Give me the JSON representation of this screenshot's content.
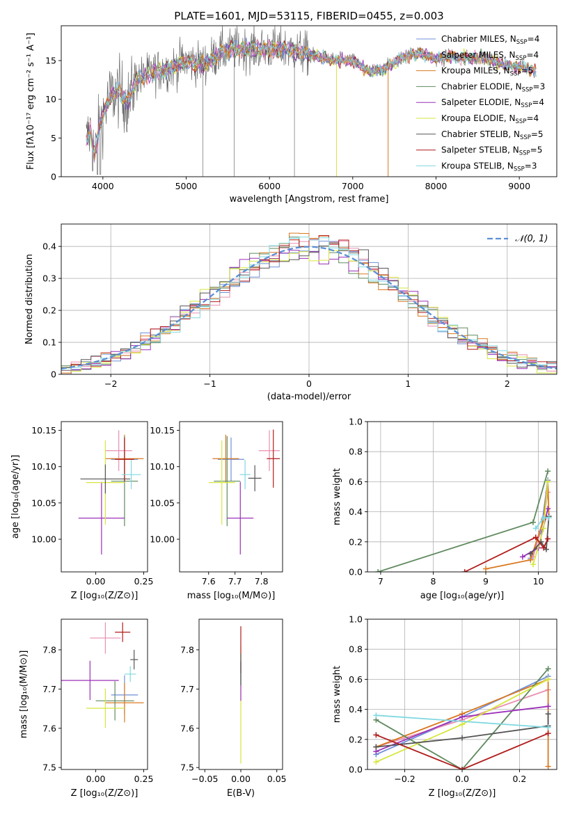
{
  "colors": {
    "chabrier_miles": "#6f8fd8",
    "salpeter_miles": "#e98db0",
    "kroupa_miles": "#d9781f",
    "chabrier_elodie": "#5f8a5f",
    "salpeter_elodie": "#9a2fb8",
    "kroupa_elodie": "#d6e63c",
    "chabrier_stelib": "#555555",
    "salpeter_stelib": "#b01c1c",
    "kroupa_stelib": "#7fd8e0",
    "normal_curve": "#5b8fd4"
  },
  "models": [
    {
      "key": "chabrier_miles",
      "label_pre": "Chabrier MILES, N",
      "sub": "SSP",
      "label_post": "=4"
    },
    {
      "key": "salpeter_miles",
      "label_pre": "Salpeter MILES, N",
      "sub": "SSP",
      "label_post": "=4"
    },
    {
      "key": "kroupa_miles",
      "label_pre": "Kroupa MILES, N",
      "sub": "SSP",
      "label_post": "=5"
    },
    {
      "key": "chabrier_elodie",
      "label_pre": "Chabrier ELODIE, N",
      "sub": "SSP",
      "label_post": "=3"
    },
    {
      "key": "salpeter_elodie",
      "label_pre": "Salpeter ELODIE, N",
      "sub": "SSP",
      "label_post": "=4"
    },
    {
      "key": "kroupa_elodie",
      "label_pre": "Kroupa ELODIE, N",
      "sub": "SSP",
      "label_post": "=4"
    },
    {
      "key": "chabrier_stelib",
      "label_pre": "Chabrier STELIB, N",
      "sub": "SSP",
      "label_post": "=5"
    },
    {
      "key": "salpeter_stelib",
      "label_pre": "Salpeter STELIB, N",
      "sub": "SSP",
      "label_post": "=5"
    },
    {
      "key": "kroupa_stelib",
      "label_pre": "Kroupa STELIB, N",
      "sub": "SSP",
      "label_post": "=3"
    }
  ],
  "chart_data": [
    {
      "id": "spectrum",
      "type": "line",
      "title": "PLATE=1601, MJD=53115, FIBERID=0455, z=0.003",
      "xlabel": "wavelength [Angstrom, rest frame]",
      "ylabel": "Flux [fλ10⁻¹⁷ erg cm⁻² s⁻¹ A⁻¹]",
      "xlim": [
        3500,
        9450
      ],
      "ylim": [
        0,
        19.5
      ],
      "xticks": [
        4000,
        5000,
        6000,
        7000,
        8000,
        9000
      ],
      "yticks": [
        0,
        5,
        10,
        15
      ],
      "legend": "upper-right",
      "continuum": [
        [
          3800,
          4.5
        ],
        [
          3850,
          6
        ],
        [
          3900,
          2.5
        ],
        [
          3950,
          6
        ],
        [
          4000,
          8
        ],
        [
          4100,
          10.5
        ],
        [
          4200,
          11
        ],
        [
          4300,
          9.5
        ],
        [
          4400,
          12.5
        ],
        [
          4600,
          13.5
        ],
        [
          4800,
          14
        ],
        [
          5000,
          15
        ],
        [
          5200,
          14.5
        ],
        [
          5400,
          16
        ],
        [
          5600,
          16.5
        ],
        [
          5800,
          16.5
        ],
        [
          6000,
          16.5
        ],
        [
          6200,
          16.5
        ],
        [
          6400,
          16
        ],
        [
          6600,
          15.5
        ],
        [
          6800,
          15
        ],
        [
          7000,
          15
        ],
        [
          7200,
          13.5
        ],
        [
          7400,
          14
        ],
        [
          7600,
          15.5
        ],
        [
          7800,
          16
        ],
        [
          8000,
          15.2
        ],
        [
          8200,
          15.5
        ],
        [
          8400,
          15.3
        ],
        [
          8600,
          15.4
        ],
        [
          8800,
          14.5
        ],
        [
          9000,
          14.2
        ],
        [
          9200,
          13.7
        ]
      ]
    },
    {
      "id": "residuals",
      "type": "histogram",
      "xlabel": "(data-model)/error",
      "ylabel": "Normed distribution",
      "xlim": [
        -2.5,
        2.5
      ],
      "ylim": [
        0,
        0.47
      ],
      "xticks": [
        -2,
        -1,
        0,
        1,
        2
      ],
      "yticks": [
        0.0,
        0.1,
        0.2,
        0.3,
        0.4
      ],
      "grid": true,
      "legend": "upper-right",
      "curve_label": "𝒩(0, 1)",
      "bin_width": 0.1
    },
    {
      "id": "age_vs_Z",
      "type": "errorbar",
      "xlabel": "Z [log₁₀(Z/Z⊙)]",
      "ylabel": "age  [log₁₀(age/yr)]",
      "xlim": [
        -0.18,
        0.27
      ],
      "ylim": [
        9.955,
        10.162
      ],
      "xticks": [
        0.0,
        0.25
      ],
      "xticklabels": [
        "0.00",
        "0.25"
      ],
      "yticks": [
        10.0,
        10.05,
        10.1,
        10.15
      ],
      "yticklabels": [
        "10.00",
        "10.05",
        "10.10",
        "10.15"
      ],
      "points": [
        {
          "m": "chabrier_miles",
          "x": 0.15,
          "xe": 0.07,
          "y": 10.11,
          "ye": 0.03
        },
        {
          "m": "salpeter_miles",
          "x": 0.12,
          "xe": 0.07,
          "y": 10.122,
          "ye": 0.028
        },
        {
          "m": "kroupa_miles",
          "x": 0.15,
          "xe": 0.1,
          "y": 10.111,
          "ye": 0.033
        },
        {
          "m": "chabrier_elodie",
          "x": 0.15,
          "xe": 0.07,
          "y": 10.08,
          "ye": 0.062
        },
        {
          "m": "salpeter_elodie",
          "x": 0.03,
          "xe": 0.12,
          "y": 10.029,
          "ye": 0.05
        },
        {
          "m": "kroupa_elodie",
          "x": 0.05,
          "xe": 0.1,
          "y": 10.078,
          "ye": 0.058
        },
        {
          "m": "chabrier_stelib",
          "x": 0.05,
          "xe": 0.13,
          "y": 10.083,
          "ye": 0.02
        },
        {
          "m": "salpeter_stelib",
          "x": 0.15,
          "xe": 0.05,
          "y": 10.11,
          "ye": 0.03
        },
        {
          "m": "kroupa_stelib",
          "x": 0.185,
          "xe": 0.05,
          "y": 10.089,
          "ye": 0.02
        }
      ]
    },
    {
      "id": "age_vs_mass",
      "type": "errorbar",
      "xlabel": "mass [log₁₀(M/M⊙)]",
      "ylabel": "",
      "xlim": [
        7.49,
        7.88
      ],
      "ylim": [
        9.955,
        10.162
      ],
      "xticks": [
        7.6,
        7.7,
        7.8
      ],
      "xticklabels": [
        "7.6",
        "7.7",
        "7.8"
      ],
      "yticks": [
        10.0,
        10.05,
        10.1,
        10.15
      ],
      "yticklabels": [
        "10.00",
        "10.05",
        "10.10",
        "10.15"
      ],
      "points": [
        {
          "m": "chabrier_miles",
          "x": 7.685,
          "xe": 0.05,
          "y": 10.11,
          "ye": 0.03
        },
        {
          "m": "salpeter_miles",
          "x": 7.83,
          "xe": 0.04,
          "y": 10.122,
          "ye": 0.028
        },
        {
          "m": "kroupa_miles",
          "x": 7.665,
          "xe": 0.05,
          "y": 10.111,
          "ye": 0.033
        },
        {
          "m": "chabrier_elodie",
          "x": 7.67,
          "xe": 0.05,
          "y": 10.08,
          "ye": 0.062
        },
        {
          "m": "salpeter_elodie",
          "x": 7.72,
          "xe": 0.05,
          "y": 10.029,
          "ye": 0.05
        },
        {
          "m": "kroupa_elodie",
          "x": 7.65,
          "xe": 0.05,
          "y": 10.078,
          "ye": 0.058
        },
        {
          "m": "chabrier_stelib",
          "x": 7.775,
          "xe": 0.025,
          "y": 10.084,
          "ye": 0.018
        },
        {
          "m": "salpeter_stelib",
          "x": 7.845,
          "xe": 0.025,
          "y": 10.111,
          "ye": 0.04
        },
        {
          "m": "kroupa_stelib",
          "x": 7.738,
          "xe": 0.02,
          "y": 10.089,
          "ye": 0.02
        }
      ]
    },
    {
      "id": "weight_vs_age",
      "type": "line",
      "xlabel": "age  [log₁₀(age/yr)]",
      "ylabel": "mass weight",
      "xlim": [
        6.75,
        10.35
      ],
      "ylim": [
        0,
        1.0
      ],
      "xticks": [
        7,
        8,
        9,
        10
      ],
      "yticks": [
        0.0,
        0.2,
        0.4,
        0.6,
        0.8,
        1.0
      ],
      "yticklabels": [
        "0.0",
        "0.2",
        "0.4",
        "0.6",
        "0.8",
        "1.0"
      ],
      "grid": true,
      "series": [
        {
          "m": "chabrier_miles",
          "points": [
            [
              9.85,
              0.09
            ],
            [
              10.05,
              0.27
            ],
            [
              10.18,
              0.61
            ]
          ]
        },
        {
          "m": "salpeter_miles",
          "points": [
            [
              9.9,
              0.1
            ],
            [
              10.1,
              0.35
            ],
            [
              10.18,
              0.53
            ]
          ]
        },
        {
          "m": "kroupa_miles",
          "points": [
            [
              9.0,
              0.02
            ],
            [
              9.85,
              0.08
            ],
            [
              10.1,
              0.35
            ],
            [
              10.18,
              0.6
            ],
            [
              10.2,
              0.36
            ]
          ]
        },
        {
          "m": "chabrier_elodie",
          "points": [
            [
              6.95,
              0.0
            ],
            [
              9.9,
              0.33
            ],
            [
              10.18,
              0.67
            ]
          ]
        },
        {
          "m": "salpeter_elodie",
          "points": [
            [
              9.7,
              0.1
            ],
            [
              10.0,
              0.16
            ],
            [
              10.18,
              0.42
            ]
          ]
        },
        {
          "m": "kroupa_elodie",
          "points": [
            [
              9.9,
              0.05
            ],
            [
              10.1,
              0.29
            ],
            [
              10.18,
              0.6
            ]
          ]
        },
        {
          "m": "chabrier_stelib",
          "points": [
            [
              9.85,
              0.12
            ],
            [
              10.05,
              0.2
            ],
            [
              10.15,
              0.15
            ],
            [
              10.2,
              0.37
            ]
          ]
        },
        {
          "m": "salpeter_stelib",
          "points": [
            [
              8.6,
              0.0
            ],
            [
              9.95,
              0.23
            ],
            [
              10.1,
              0.16
            ],
            [
              10.18,
              0.22
            ]
          ]
        },
        {
          "m": "kroupa_stelib",
          "points": [
            [
              9.95,
              0.29
            ],
            [
              10.1,
              0.36
            ],
            [
              10.2,
              0.36
            ]
          ]
        }
      ]
    },
    {
      "id": "mass_vs_Z",
      "type": "errorbar",
      "xlabel": "Z [log₁₀(Z/Z⊙)]",
      "ylabel": "mass [log₁₀(M/M⊙)]",
      "xlim": [
        -0.18,
        0.27
      ],
      "ylim": [
        7.495,
        7.878
      ],
      "xticks": [
        0.0,
        0.25
      ],
      "xticklabels": [
        "0.00",
        "0.25"
      ],
      "yticks": [
        7.5,
        7.6,
        7.7,
        7.8
      ],
      "yticklabels": [
        "7.5",
        "7.6",
        "7.7",
        "7.8"
      ],
      "points": [
        {
          "m": "chabrier_miles",
          "x": 0.15,
          "xe": 0.07,
          "y": 7.685,
          "ye": 0.05
        },
        {
          "m": "salpeter_miles",
          "x": 0.05,
          "xe": 0.08,
          "y": 7.83,
          "ye": 0.04
        },
        {
          "m": "kroupa_miles",
          "x": 0.15,
          "xe": 0.1,
          "y": 7.665,
          "ye": 0.05
        },
        {
          "m": "chabrier_elodie",
          "x": 0.1,
          "xe": 0.1,
          "y": 7.67,
          "ye": 0.05
        },
        {
          "m": "salpeter_elodie",
          "x": -0.03,
          "xe": 0.15,
          "y": 7.722,
          "ye": 0.05
        },
        {
          "m": "kroupa_elodie",
          "x": 0.05,
          "xe": 0.1,
          "y": 7.651,
          "ye": 0.05
        },
        {
          "m": "chabrier_stelib",
          "x": 0.2,
          "xe": 0.02,
          "y": 7.775,
          "ye": 0.025
        },
        {
          "m": "salpeter_stelib",
          "x": 0.14,
          "xe": 0.04,
          "y": 7.845,
          "ye": 0.025
        },
        {
          "m": "kroupa_stelib",
          "x": 0.18,
          "xe": 0.03,
          "y": 7.738,
          "ye": 0.02
        }
      ]
    },
    {
      "id": "mass_vs_ebv",
      "type": "errorbar",
      "xlabel": "E(B-V)",
      "ylabel": "",
      "xlim": [
        -0.058,
        0.058
      ],
      "ylim": [
        7.495,
        7.878
      ],
      "xticks": [
        -0.05,
        0.0,
        0.05
      ],
      "xticklabels": [
        "−0.05",
        "0.00",
        "0.05"
      ],
      "yticks": [
        7.5,
        7.6,
        7.7,
        7.8
      ],
      "yticklabels": [
        "7.5",
        "7.6",
        "7.7",
        "7.8"
      ],
      "points": [
        {
          "m": "kroupa_elodie",
          "x": 0.0,
          "xe": 0.0,
          "y": 7.66,
          "ye": 0.15
        },
        {
          "m": "kroupa_stelib",
          "x": 0.0,
          "xe": 0.0,
          "y": 7.74,
          "ye": 0.03
        },
        {
          "m": "salpeter_elodie",
          "x": 0.0,
          "xe": 0.0,
          "y": 7.72,
          "ye": 0.05
        },
        {
          "m": "salpeter_stelib",
          "x": 0.0,
          "xe": 0.0,
          "y": 7.8,
          "ye": 0.06
        },
        {
          "m": "chabrier_stelib",
          "x": 0.0,
          "xe": 0.0,
          "y": 7.75,
          "ye": 0.04
        }
      ]
    },
    {
      "id": "weight_vs_Z",
      "type": "line",
      "xlabel": "Z [log₁₀(Z/Z⊙)]",
      "ylabel": "mass weight",
      "xlim": [
        -0.33,
        0.33
      ],
      "ylim": [
        0,
        1.0
      ],
      "xticks": [
        -0.2,
        0.0,
        0.2
      ],
      "xticklabels": [
        "−0.2",
        "0.0",
        "0.2"
      ],
      "yticks": [
        0.0,
        0.2,
        0.4,
        0.6,
        0.8,
        1.0
      ],
      "yticklabels": [
        "0.0",
        "0.2",
        "0.4",
        "0.6",
        "0.8",
        "1.0"
      ],
      "grid": true,
      "series": [
        {
          "m": "chabrier_miles",
          "points": [
            [
              -0.3,
              0.1
            ],
            [
              0.0,
              0.35
            ],
            [
              0.3,
              0.62
            ]
          ]
        },
        {
          "m": "salpeter_miles",
          "points": [
            [
              -0.3,
              0.15
            ],
            [
              0.0,
              0.33
            ],
            [
              0.3,
              0.53
            ]
          ]
        },
        {
          "m": "kroupa_miles",
          "points": [
            [
              -0.3,
              0.15
            ],
            [
              0.0,
              0.37
            ],
            [
              0.3,
              0.6
            ],
            [
              0.3,
              0.02
            ]
          ]
        },
        {
          "m": "chabrier_elodie",
          "points": [
            [
              -0.3,
              0.33
            ],
            [
              0.0,
              0.0
            ],
            [
              0.3,
              0.67
            ]
          ]
        },
        {
          "m": "salpeter_elodie",
          "points": [
            [
              -0.3,
              0.12
            ],
            [
              0.0,
              0.35
            ],
            [
              0.3,
              0.42
            ]
          ]
        },
        {
          "m": "kroupa_elodie",
          "points": [
            [
              -0.3,
              0.05
            ],
            [
              0.0,
              0.3
            ],
            [
              0.3,
              0.6
            ]
          ]
        },
        {
          "m": "chabrier_stelib",
          "points": [
            [
              -0.3,
              0.15
            ],
            [
              0.0,
              0.21
            ],
            [
              0.3,
              0.29
            ],
            [
              0.3,
              0.37
            ]
          ]
        },
        {
          "m": "salpeter_stelib",
          "points": [
            [
              -0.3,
              0.23
            ],
            [
              0.0,
              0.0
            ],
            [
              0.3,
              0.24
            ]
          ]
        },
        {
          "m": "kroupa_stelib",
          "points": [
            [
              -0.3,
              0.36
            ],
            [
              0.3,
              0.28
            ]
          ]
        }
      ]
    }
  ]
}
